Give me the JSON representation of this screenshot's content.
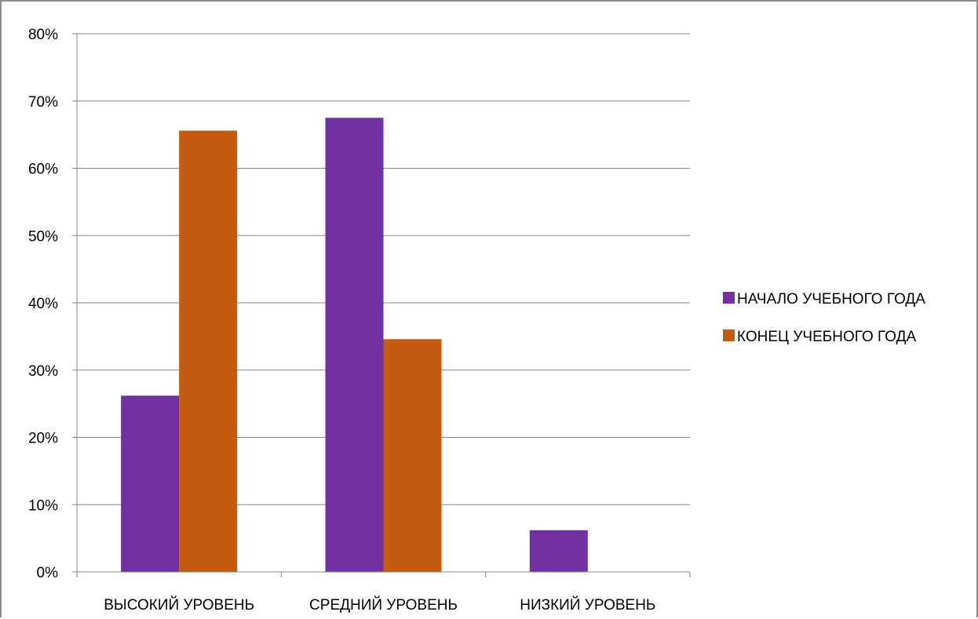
{
  "chart_data": {
    "type": "bar",
    "title": "",
    "categories": [
      "ВЫСОКИЙ УРОВЕНЬ",
      "СРЕДНИЙ УРОВЕНЬ",
      "НИЗКИЙ УРОВЕНЬ"
    ],
    "series": [
      {
        "name": "НАЧАЛО УЧЕБНОГО ГОДА",
        "color": "#7030a0",
        "values": [
          26.2,
          67.5,
          6.2
        ]
      },
      {
        "name": "КОНЕЦ УЧЕБНОГО ГОДА",
        "color": "#c55a11",
        "values": [
          65.6,
          34.6,
          0
        ]
      }
    ],
    "ylim": [
      0,
      80
    ],
    "yticks": [
      "0%",
      "10%",
      "20%",
      "30%",
      "40%",
      "50%",
      "60%",
      "70%",
      "80%"
    ],
    "ytick_values": [
      0,
      10,
      20,
      30,
      40,
      50,
      60,
      70,
      80
    ],
    "xlabel": "",
    "ylabel": "",
    "grid": true,
    "legend_position": "right"
  }
}
